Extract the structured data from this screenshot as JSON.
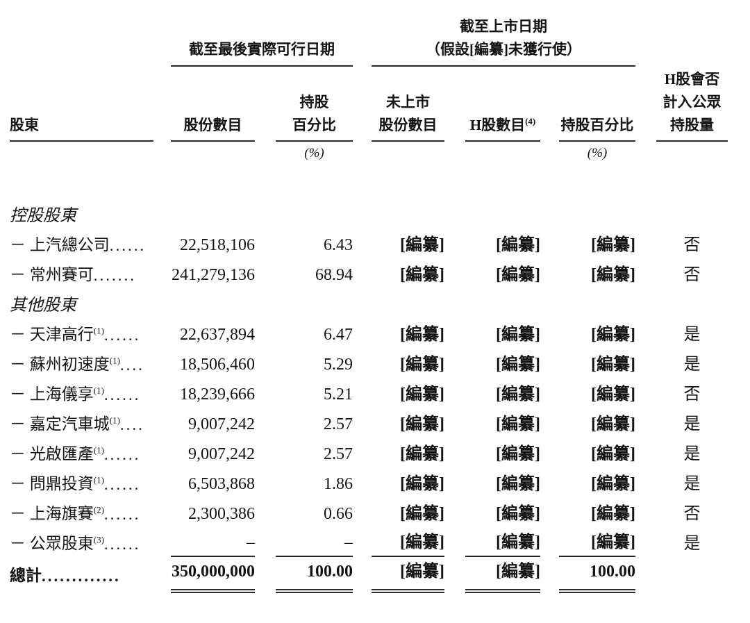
{
  "page": {
    "background": "#ffffff",
    "text_color": "#141414",
    "rule_color": "#2a2a2a"
  },
  "table": {
    "group_headers": {
      "latest_practicable": {
        "line1": "截至最後實際可行日期"
      },
      "listing_date": {
        "line1": "截至上市日期",
        "line2": "（假設[編纂]未獲行使）"
      }
    },
    "columns": [
      {
        "id": "shareholder",
        "lines": [
          "股東"
        ],
        "align": "left"
      },
      {
        "id": "shares",
        "lines": [
          "股份數目"
        ]
      },
      {
        "id": "pct",
        "lines": [
          "持股",
          "百分比"
        ],
        "unit": "(%)"
      },
      {
        "id": "unlisted-shares",
        "lines": [
          "未上市",
          "股份數目"
        ]
      },
      {
        "id": "h-shares",
        "lines": [
          "H股數目"
        ],
        "sup": "(4)"
      },
      {
        "id": "pct-listing",
        "lines": [
          "持股百分比"
        ],
        "unit": "(%)"
      },
      {
        "id": "public-float",
        "lines": [
          "H股會否",
          "計入公眾",
          "持股量"
        ]
      }
    ],
    "rows": [
      {
        "type": "section",
        "label": "控股股東"
      },
      {
        "type": "data",
        "name": "－ 上汽總公司",
        "sup": "",
        "leader": "......",
        "values": [
          "22,518,106",
          "6.43",
          "[編纂]",
          "[編纂]",
          "[編纂]",
          "否"
        ]
      },
      {
        "type": "data",
        "name": "－ 常州賽可",
        "sup": "",
        "leader": " .......",
        "values": [
          "241,279,136",
          "68.94",
          "[編纂]",
          "[編纂]",
          "[編纂]",
          "否"
        ]
      },
      {
        "type": "section",
        "label": "其他股東"
      },
      {
        "type": "data",
        "name": "－ 天津高行",
        "sup": "(1)",
        "leader": " ......",
        "values": [
          "22,637,894",
          "6.47",
          "[編纂]",
          "[編纂]",
          "[編纂]",
          "是"
        ]
      },
      {
        "type": "data",
        "name": "－ 蘇州初速度",
        "sup": "(1)",
        "leader": " ....",
        "values": [
          "18,506,460",
          "5.29",
          "[編纂]",
          "[編纂]",
          "[編纂]",
          "是"
        ]
      },
      {
        "type": "data",
        "name": "－ 上海儀享",
        "sup": "(1)",
        "leader": " ......",
        "values": [
          "18,239,666",
          "5.21",
          "[編纂]",
          "[編纂]",
          "[編纂]",
          "否"
        ]
      },
      {
        "type": "data",
        "name": "－ 嘉定汽車城",
        "sup": "(1)",
        "leader": " ....",
        "values": [
          "9,007,242",
          "2.57",
          "[編纂]",
          "[編纂]",
          "[編纂]",
          "是"
        ]
      },
      {
        "type": "data",
        "name": "－ 光啟匯產",
        "sup": "(1)",
        "leader": " ......",
        "values": [
          "9,007,242",
          "2.57",
          "[編纂]",
          "[編纂]",
          "[編纂]",
          "是"
        ]
      },
      {
        "type": "data",
        "name": "－ 問鼎投資",
        "sup": "(1)",
        "leader": " ......",
        "values": [
          "6,503,868",
          "1.86",
          "[編纂]",
          "[編纂]",
          "[編纂]",
          "是"
        ]
      },
      {
        "type": "data",
        "name": "－ 上海旗賽",
        "sup": "(2)",
        "leader": " ......",
        "values": [
          "2,300,386",
          "0.66",
          "[編纂]",
          "[編纂]",
          "[編纂]",
          "否"
        ]
      },
      {
        "type": "data",
        "name": "－ 公眾股東",
        "sup": "(3)",
        "leader": " ......",
        "rule_below": true,
        "values": [
          "–",
          "–",
          "[編纂]",
          "[編纂]",
          "[編纂]",
          "是"
        ]
      },
      {
        "type": "total",
        "name": "總計",
        "sup": "",
        "leader": " .............",
        "values": [
          "350,000,000",
          "100.00",
          "[編纂]",
          "[編纂]",
          "100.00",
          ""
        ]
      }
    ],
    "redacted_token": "[編纂]"
  }
}
